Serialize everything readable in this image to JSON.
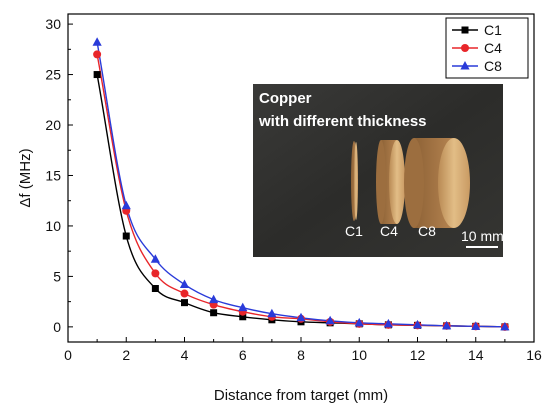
{
  "chart_data": {
    "type": "scatter",
    "xlabel": "Distance from target (mm)",
    "ylabel": "Δf (MHz)",
    "xlim": [
      0,
      16
    ],
    "ylim": [
      -1.5,
      31
    ],
    "xticks": [
      0,
      2,
      4,
      6,
      8,
      10,
      12,
      14,
      16
    ],
    "yticks": [
      0,
      5,
      10,
      15,
      20,
      25,
      30
    ],
    "grid": false,
    "legend_position": "top-right",
    "fit_lines": true,
    "series": [
      {
        "name": "C1",
        "marker": "square",
        "color": "#000000",
        "x": [
          1,
          2,
          3,
          4,
          5,
          6,
          7,
          8,
          9,
          10,
          11,
          12,
          13,
          14,
          15
        ],
        "values": [
          25.0,
          9.0,
          3.8,
          2.4,
          1.4,
          1.0,
          0.7,
          0.5,
          0.4,
          0.3,
          0.2,
          0.15,
          0.1,
          0.05,
          0.0
        ]
      },
      {
        "name": "C4",
        "marker": "circle",
        "color": "#e8262a",
        "x": [
          1,
          2,
          3,
          4,
          5,
          6,
          7,
          8,
          9,
          10,
          11,
          12,
          13,
          14,
          15
        ],
        "values": [
          27.0,
          11.5,
          5.3,
          3.3,
          2.2,
          1.5,
          1.0,
          0.8,
          0.5,
          0.3,
          0.2,
          0.15,
          0.1,
          0.05,
          0.0
        ]
      },
      {
        "name": "C8",
        "marker": "triangle",
        "color": "#2a3bd9",
        "x": [
          1,
          2,
          3,
          4,
          5,
          6,
          7,
          8,
          9,
          10,
          11,
          12,
          13,
          14,
          15
        ],
        "values": [
          28.2,
          12.0,
          6.7,
          4.2,
          2.7,
          1.9,
          1.3,
          0.9,
          0.6,
          0.4,
          0.3,
          0.2,
          0.1,
          0.05,
          0.0
        ]
      }
    ],
    "inset": {
      "title_line1": "Copper",
      "title_line2": "with different thickness",
      "labels": [
        "C1",
        "C4",
        "C8"
      ],
      "scale_bar": "10 mm"
    }
  }
}
